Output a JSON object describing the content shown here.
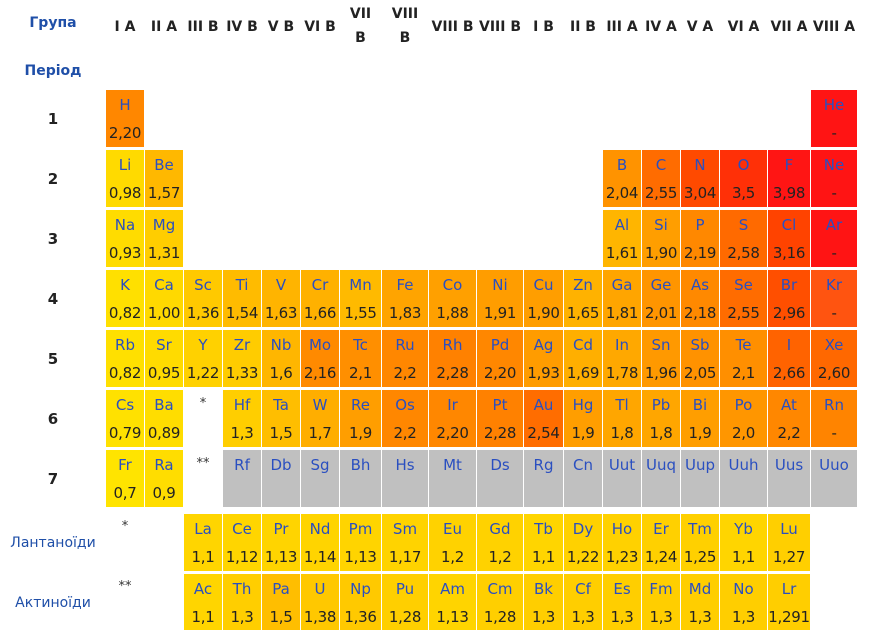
{
  "header": {
    "group_label": "Група",
    "period_label": "Період",
    "groups": [
      "I A",
      "II A",
      "III B",
      "IV B",
      "V B",
      "VI B",
      "VII B",
      "VIII B",
      "VIII B",
      "VIII B",
      "I B",
      "II B",
      "III A",
      "IV A",
      "V A",
      "VI A",
      "VII A",
      "VIII A"
    ]
  },
  "periods": [
    {
      "label": "1",
      "cells": [
        {
          "symbol": "H",
          "value": "2,20"
        },
        null,
        null,
        null,
        null,
        null,
        null,
        null,
        null,
        null,
        null,
        null,
        null,
        null,
        null,
        null,
        null,
        {
          "symbol": "He",
          "value": "-",
          "color": "#ff1414"
        }
      ]
    },
    {
      "label": "2",
      "cells": [
        {
          "symbol": "Li",
          "value": "0,98"
        },
        {
          "symbol": "Be",
          "value": "1,57"
        },
        null,
        null,
        null,
        null,
        null,
        null,
        null,
        null,
        null,
        null,
        {
          "symbol": "B",
          "value": "2,04"
        },
        {
          "symbol": "C",
          "value": "2,55"
        },
        {
          "symbol": "N",
          "value": "3,04"
        },
        {
          "symbol": "O",
          "value": "3,5"
        },
        {
          "symbol": "F",
          "value": "3,98"
        },
        {
          "symbol": "Ne",
          "value": "-",
          "color": "#ff1414"
        }
      ]
    },
    {
      "label": "3",
      "cells": [
        {
          "symbol": "Na",
          "value": "0,93"
        },
        {
          "symbol": "Mg",
          "value": "1,31"
        },
        null,
        null,
        null,
        null,
        null,
        null,
        null,
        null,
        null,
        null,
        {
          "symbol": "Al",
          "value": "1,61"
        },
        {
          "symbol": "Si",
          "value": "1,90"
        },
        {
          "symbol": "P",
          "value": "2,19"
        },
        {
          "symbol": "S",
          "value": "2,58"
        },
        {
          "symbol": "Cl",
          "value": "3,16"
        },
        {
          "symbol": "Ar",
          "value": "-",
          "color": "#ff1414"
        }
      ]
    },
    {
      "label": "4",
      "cells": [
        {
          "symbol": "K",
          "value": "0,82"
        },
        {
          "symbol": "Ca",
          "value": "1,00"
        },
        {
          "symbol": "Sc",
          "value": "1,36"
        },
        {
          "symbol": "Ti",
          "value": "1,54"
        },
        {
          "symbol": "V",
          "value": "1,63"
        },
        {
          "symbol": "Cr",
          "value": "1,66"
        },
        {
          "symbol": "Mn",
          "value": "1,55"
        },
        {
          "symbol": "Fe",
          "value": "1,83"
        },
        {
          "symbol": "Co",
          "value": "1,88"
        },
        {
          "symbol": "Ni",
          "value": "1,91"
        },
        {
          "symbol": "Cu",
          "value": "1,90"
        },
        {
          "symbol": "Zn",
          "value": "1,65"
        },
        {
          "symbol": "Ga",
          "value": "1,81"
        },
        {
          "symbol": "Ge",
          "value": "2,01"
        },
        {
          "symbol": "As",
          "value": "2,18"
        },
        {
          "symbol": "Se",
          "value": "2,55"
        },
        {
          "symbol": "Br",
          "value": "2,96"
        },
        {
          "symbol": "Kr",
          "value": "-",
          "color": "#ff5410"
        }
      ]
    },
    {
      "label": "5",
      "cells": [
        {
          "symbol": "Rb",
          "value": "0,82"
        },
        {
          "symbol": "Sr",
          "value": "0,95"
        },
        {
          "symbol": "Y",
          "value": "1,22"
        },
        {
          "symbol": "Zr",
          "value": "1,33"
        },
        {
          "symbol": "Nb",
          "value": "1,6"
        },
        {
          "symbol": "Mo",
          "value": "2,16"
        },
        {
          "symbol": "Tc",
          "value": "2,1"
        },
        {
          "symbol": "Ru",
          "value": "2,2"
        },
        {
          "symbol": "Rh",
          "value": "2,28"
        },
        {
          "symbol": "Pd",
          "value": "2,20"
        },
        {
          "symbol": "Ag",
          "value": "1,93"
        },
        {
          "symbol": "Cd",
          "value": "1,69"
        },
        {
          "symbol": "In",
          "value": "1,78"
        },
        {
          "symbol": "Sn",
          "value": "1,96"
        },
        {
          "symbol": "Sb",
          "value": "2,05"
        },
        {
          "symbol": "Te",
          "value": "2,1"
        },
        {
          "symbol": "I",
          "value": "2,66"
        },
        {
          "symbol": "Xe",
          "value": "2,60"
        }
      ]
    },
    {
      "label": "6",
      "cells": [
        {
          "symbol": "Cs",
          "value": "0,79"
        },
        {
          "symbol": "Ba",
          "value": "0,89"
        },
        "*",
        {
          "symbol": "Hf",
          "value": "1,3"
        },
        {
          "symbol": "Ta",
          "value": "1,5"
        },
        {
          "symbol": "W",
          "value": "1,7"
        },
        {
          "symbol": "Re",
          "value": "1,9"
        },
        {
          "symbol": "Os",
          "value": "2,2"
        },
        {
          "symbol": "Ir",
          "value": "2,20"
        },
        {
          "symbol": "Pt",
          "value": "2,28"
        },
        {
          "symbol": "Au",
          "value": "2,54"
        },
        {
          "symbol": "Hg",
          "value": "1,9"
        },
        {
          "symbol": "Tl",
          "value": "1,8"
        },
        {
          "symbol": "Pb",
          "value": "1,8"
        },
        {
          "symbol": "Bi",
          "value": "1,9"
        },
        {
          "symbol": "Po",
          "value": "2,0"
        },
        {
          "symbol": "At",
          "value": "2,2"
        },
        {
          "symbol": "Rn",
          "value": "-",
          "color": "#ff8400"
        }
      ]
    },
    {
      "label": "7",
      "cells": [
        {
          "symbol": "Fr",
          "value": "0,7"
        },
        {
          "symbol": "Ra",
          "value": "0,9"
        },
        "**",
        {
          "symbol": "Rf"
        },
        {
          "symbol": "Db"
        },
        {
          "symbol": "Sg"
        },
        {
          "symbol": "Bh"
        },
        {
          "symbol": "Hs"
        },
        {
          "symbol": "Mt"
        },
        {
          "symbol": "Ds"
        },
        {
          "symbol": "Rg"
        },
        {
          "symbol": "Cn"
        },
        {
          "symbol": "Uut"
        },
        {
          "symbol": "Uuq"
        },
        {
          "symbol": "Uup"
        },
        {
          "symbol": "Uuh"
        },
        {
          "symbol": "Uus"
        },
        {
          "symbol": "Uuo"
        }
      ]
    }
  ],
  "series": [
    {
      "label": "Лантаноїди",
      "marker": "*",
      "cells": [
        null,
        null,
        {
          "symbol": "La",
          "value": "1,1"
        },
        {
          "symbol": "Ce",
          "value": "1,12"
        },
        {
          "symbol": "Pr",
          "value": "1,13"
        },
        {
          "symbol": "Nd",
          "value": "1,14"
        },
        {
          "symbol": "Pm",
          "value": "1,13"
        },
        {
          "symbol": "Sm",
          "value": "1,17"
        },
        {
          "symbol": "Eu",
          "value": "1,2"
        },
        {
          "symbol": "Gd",
          "value": "1,2"
        },
        {
          "symbol": "Tb",
          "value": "1,1"
        },
        {
          "symbol": "Dy",
          "value": "1,22"
        },
        {
          "symbol": "Ho",
          "value": "1,23"
        },
        {
          "symbol": "Er",
          "value": "1,24"
        },
        {
          "symbol": "Tm",
          "value": "1,25"
        },
        {
          "symbol": "Yb",
          "value": "1,1"
        },
        {
          "symbol": "Lu",
          "value": "1,27"
        },
        null
      ]
    },
    {
      "label": "Актиноїди",
      "marker": "**",
      "cells": [
        null,
        null,
        {
          "symbol": "Ac",
          "value": "1,1"
        },
        {
          "symbol": "Th",
          "value": "1,3"
        },
        {
          "symbol": "Pa",
          "value": "1,5"
        },
        {
          "symbol": "U",
          "value": "1,38"
        },
        {
          "symbol": "Np",
          "value": "1,36"
        },
        {
          "symbol": "Pu",
          "value": "1,28"
        },
        {
          "symbol": "Am",
          "value": "1,13"
        },
        {
          "symbol": "Cm",
          "value": "1,28"
        },
        {
          "symbol": "Bk",
          "value": "1,3"
        },
        {
          "symbol": "Cf",
          "value": "1,3"
        },
        {
          "symbol": "Es",
          "value": "1,3"
        },
        {
          "symbol": "Fm",
          "value": "1,3"
        },
        {
          "symbol": "Md",
          "value": "1,3"
        },
        {
          "symbol": "No",
          "value": "1,3"
        },
        {
          "symbol": "Lr",
          "value": "1,291"
        },
        null
      ]
    }
  ]
}
